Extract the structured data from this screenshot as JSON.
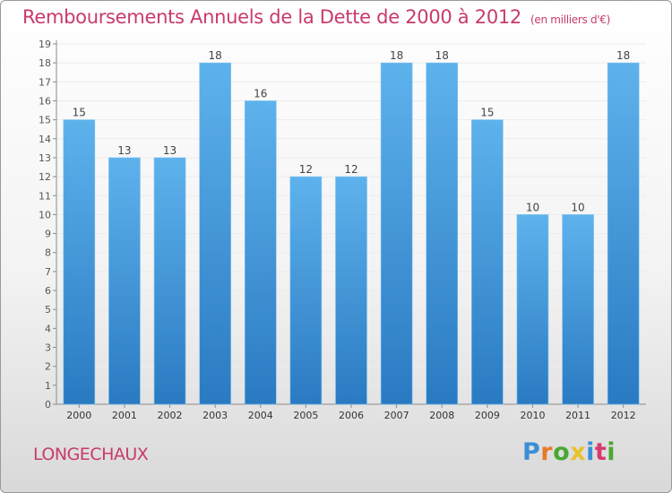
{
  "title": "Remboursements Annuels de la Dette de 2000 à 2012",
  "unit": "(en milliers d'€)",
  "commune": "LONGECHAUX",
  "logo": {
    "text": "Proxiti",
    "colors": [
      "#3a8fd6",
      "#e8792b",
      "#4aa832",
      "#e8c22b",
      "#3a8fd6",
      "#d63a6e",
      "#4aa832"
    ]
  },
  "colors": {
    "title": "#c83a6e",
    "bar_light": "#5eb2ec",
    "bar_dark": "#2a7ac2",
    "grid": "#ececec",
    "axis": "#8a8a8a"
  },
  "chart_data": {
    "type": "bar",
    "title": "Remboursements Annuels de la Dette de 2000 à 2012",
    "xlabel": "",
    "ylabel": "",
    "categories": [
      "2000",
      "2001",
      "2002",
      "2003",
      "2004",
      "2005",
      "2006",
      "2007",
      "2008",
      "2009",
      "2010",
      "2011",
      "2012"
    ],
    "values": [
      15,
      13,
      13,
      18,
      16,
      12,
      12,
      18,
      18,
      15,
      10,
      10,
      18
    ],
    "ylim": [
      0,
      19
    ],
    "yticks": [
      0,
      1,
      2,
      3,
      4,
      5,
      6,
      7,
      8,
      9,
      10,
      11,
      12,
      13,
      14,
      15,
      16,
      17,
      18,
      19
    ],
    "grid": true,
    "data_labels": true,
    "legend": "none"
  }
}
